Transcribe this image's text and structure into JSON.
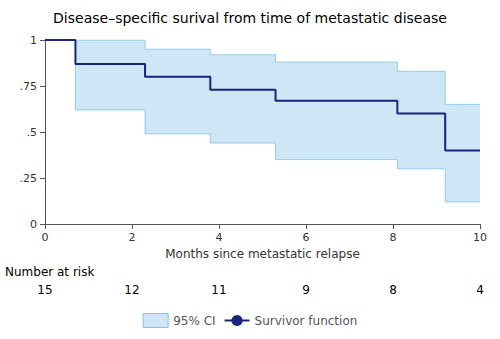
{
  "chart_data": {
    "type": "line",
    "title": "Disease–specific surival from time of metastatic disease",
    "xlabel": "Months since metastatic relapse",
    "xlim": [
      0,
      10
    ],
    "ylim": [
      0,
      1
    ],
    "xticks": [
      0,
      2,
      4,
      6,
      8,
      10
    ],
    "yticks": [
      0,
      {
        "value": 0.25,
        "label": ".25"
      },
      {
        "value": 0.5,
        "label": ".5"
      },
      {
        "value": 0.75,
        "label": ".75"
      },
      1
    ],
    "grid": false,
    "legend": "bottom",
    "x": [
      0,
      0.7,
      0.7,
      2.3,
      2.3,
      3.8,
      3.8,
      5.3,
      5.3,
      8.1,
      8.1,
      9.2,
      9.2,
      10.0
    ],
    "series": [
      {
        "name": "95% CI",
        "type": "area",
        "color": "#85c1e9",
        "upper": [
          1.0,
          1.0,
          1.0,
          1.0,
          0.95,
          0.95,
          0.92,
          0.92,
          0.88,
          0.88,
          0.83,
          0.83,
          0.65,
          0.65
        ],
        "lower": [
          1.0,
          1.0,
          0.62,
          0.62,
          0.49,
          0.49,
          0.44,
          0.44,
          0.35,
          0.35,
          0.3,
          0.3,
          0.12,
          0.12
        ]
      },
      {
        "name": "Survivor function",
        "type": "line",
        "color": "#1a237e",
        "values": [
          1.0,
          1.0,
          0.87,
          0.87,
          0.8,
          0.8,
          0.73,
          0.73,
          0.67,
          0.67,
          0.6,
          0.6,
          0.4,
          0.4
        ]
      }
    ],
    "number_at_risk": {
      "label": "Number at risk",
      "x": [
        0,
        2,
        4,
        6,
        8,
        10
      ],
      "values": [
        15,
        12,
        11,
        9,
        8,
        4
      ]
    }
  }
}
